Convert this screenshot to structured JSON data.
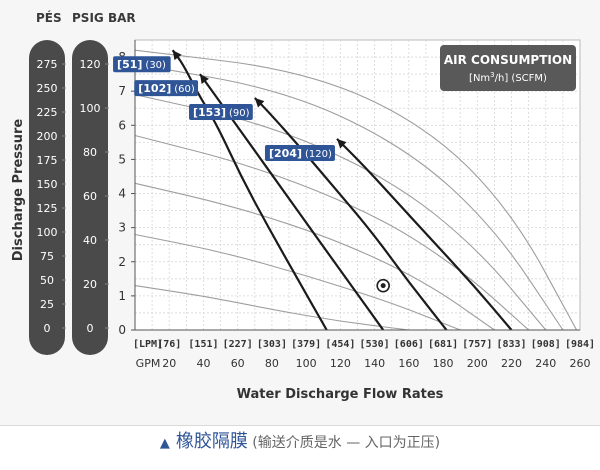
{
  "chart_data": {
    "type": "line",
    "xlabel": "Water Discharge Flow Rates",
    "ylabel": "Discharge Pressure",
    "x_unit_lpm": "[LPM]",
    "x_unit_gpm": "GPM",
    "x_ticks_gpm": [
      20,
      40,
      60,
      80,
      100,
      120,
      140,
      160,
      180,
      200,
      220,
      240,
      260
    ],
    "x_ticks_lpm": [
      "[76]",
      "[151]",
      "[227]",
      "[303]",
      "[379]",
      "[454]",
      "[530]",
      "[606]",
      "[681]",
      "[757]",
      "[833]",
      "[908]",
      "[984]"
    ],
    "xlim_gpm": [
      0,
      260
    ],
    "y_unit_bar": "BAR",
    "y_ticks_bar": [
      0,
      1,
      2,
      3,
      4,
      5,
      6,
      7,
      8
    ],
    "ylim_bar": [
      0,
      8.5
    ],
    "y_unit_psig": "PSIG",
    "y_ticks_psig": [
      0,
      20,
      40,
      60,
      80,
      100,
      120
    ],
    "y_unit_pes": "PÉS",
    "y_ticks_pes": [
      0,
      25,
      50,
      75,
      100,
      125,
      150,
      175,
      200,
      225,
      250,
      275
    ],
    "grid": true,
    "air_consumption": {
      "title": "AIR CONSUMPTION",
      "subtitle_a": "[Nm",
      "subtitle_sup": "3",
      "subtitle_b": "/h]",
      "subtitle_c": " (SCFM)",
      "position": "top-right"
    },
    "series": [
      {
        "label_main": "[51]",
        "label_sub": "(30)",
        "x_gpm": [
          112,
          95,
          78,
          62,
          48,
          36,
          28,
          22
        ],
        "y_bar": [
          0,
          1.5,
          3,
          4.5,
          6,
          7,
          7.8,
          8.2
        ]
      },
      {
        "label_main": "[102]",
        "label_sub": "(60)",
        "x_gpm": [
          145,
          125,
          105,
          85,
          65,
          48,
          38
        ],
        "y_bar": [
          0,
          1.4,
          2.8,
          4.2,
          5.6,
          6.8,
          7.5
        ]
      },
      {
        "label_main": "[153]",
        "label_sub": "(90)",
        "x_gpm": [
          182,
          160,
          138,
          116,
          94,
          76,
          70
        ],
        "y_bar": [
          0,
          1.4,
          2.9,
          4.2,
          5.5,
          6.5,
          6.8
        ]
      },
      {
        "label_main": "[204]",
        "label_sub": "(120)",
        "x_gpm": [
          220,
          198,
          176,
          154,
          134,
          118
        ],
        "y_bar": [
          0,
          1.3,
          2.5,
          3.7,
          4.8,
          5.6
        ]
      }
    ],
    "air_curves": [
      {
        "x_gpm": [
          0,
          40,
          80,
          120,
          160
        ],
        "y_bar": [
          1.3,
          1.0,
          0.6,
          0.25,
          0
        ]
      },
      {
        "x_gpm": [
          0,
          50,
          100,
          150,
          190
        ],
        "y_bar": [
          2.8,
          2.3,
          1.6,
          0.8,
          0
        ]
      },
      {
        "x_gpm": [
          0,
          60,
          120,
          170,
          210
        ],
        "y_bar": [
          4.3,
          3.6,
          2.6,
          1.4,
          0
        ]
      },
      {
        "x_gpm": [
          0,
          70,
          140,
          190,
          230
        ],
        "y_bar": [
          5.7,
          4.8,
          3.4,
          1.8,
          0
        ]
      },
      {
        "x_gpm": [
          0,
          80,
          150,
          200,
          240
        ],
        "y_bar": [
          6.9,
          6.0,
          4.4,
          2.4,
          0
        ]
      },
      {
        "x_gpm": [
          0,
          90,
          160,
          210,
          250
        ],
        "y_bar": [
          7.8,
          7.0,
          5.3,
          3.0,
          0
        ]
      },
      {
        "x_gpm": [
          0,
          100,
          170,
          220,
          258
        ],
        "y_bar": [
          8.2,
          7.6,
          6.0,
          3.5,
          0
        ]
      }
    ],
    "marker": {
      "x_gpm": 145,
      "y_bar": 1.3
    }
  },
  "caption": {
    "icon": "▲",
    "main": "橡胶隔膜",
    "sub": " (输送介质是水 — 入口为正压)"
  }
}
